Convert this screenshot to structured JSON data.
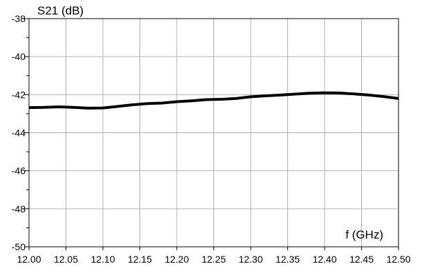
{
  "chart_data": {
    "type": "line",
    "xlabel": "f (GHz)",
    "ylabel": "S21 (dB)",
    "xlim": [
      12.0,
      12.5
    ],
    "ylim": [
      -50,
      -38
    ],
    "x_ticks": [
      12.0,
      12.05,
      12.1,
      12.15,
      12.2,
      12.25,
      12.3,
      12.35,
      12.4,
      12.45,
      12.5
    ],
    "x_tick_labels": [
      "12.00",
      "12.05",
      "12.10",
      "12.15",
      "12.20",
      "12.25",
      "12.30",
      "12.35",
      "12.40",
      "12.45",
      "12.50"
    ],
    "y_ticks": [
      -38,
      -40,
      -42,
      -44,
      -46,
      -48,
      -50
    ],
    "y_tick_labels": [
      "-38",
      "-40",
      "-42",
      "-44",
      "-46",
      "-48",
      "-50"
    ],
    "y_minor_step": 1,
    "grid": true,
    "series": [
      {
        "color": "#000000",
        "x": [
          12.0,
          12.02,
          12.04,
          12.06,
          12.08,
          12.1,
          12.12,
          12.14,
          12.16,
          12.18,
          12.2,
          12.22,
          12.24,
          12.26,
          12.28,
          12.3,
          12.32,
          12.34,
          12.36,
          12.38,
          12.4,
          12.42,
          12.44,
          12.46,
          12.48,
          12.5
        ],
        "y": [
          -42.68,
          -42.67,
          -42.64,
          -42.67,
          -42.71,
          -42.7,
          -42.62,
          -42.53,
          -42.47,
          -42.44,
          -42.37,
          -42.32,
          -42.26,
          -42.24,
          -42.2,
          -42.11,
          -42.06,
          -42.02,
          -41.97,
          -41.92,
          -41.9,
          -41.91,
          -41.96,
          -42.02,
          -42.1,
          -42.2
        ]
      }
    ]
  }
}
